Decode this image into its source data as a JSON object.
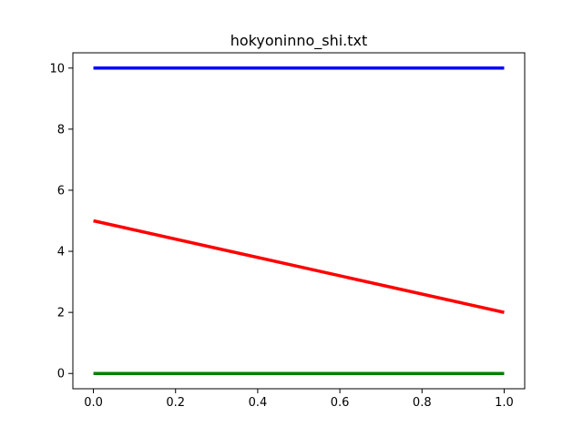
{
  "chart_data": {
    "type": "line",
    "title": "hokyoninno_shi.txt",
    "xlabel": "",
    "ylabel": "",
    "xlim": [
      -0.05,
      1.05
    ],
    "ylim": [
      -0.5,
      10.5
    ],
    "x_ticks": [
      0.0,
      0.2,
      0.4,
      0.6,
      0.8,
      1.0
    ],
    "x_tick_labels": [
      "0.0",
      "0.2",
      "0.4",
      "0.6",
      "0.8",
      "1.0"
    ],
    "y_ticks": [
      0,
      2,
      4,
      6,
      8,
      10
    ],
    "y_tick_labels": [
      "0",
      "2",
      "4",
      "6",
      "8",
      "10"
    ],
    "grid": false,
    "legend": "none",
    "series": [
      {
        "color": "#0000ff",
        "x": [
          0.0,
          1.0
        ],
        "y": [
          10,
          10
        ]
      },
      {
        "color": "#ff0000",
        "x": [
          0.0,
          1.0
        ],
        "y": [
          5,
          2
        ]
      },
      {
        "color": "#008000",
        "x": [
          0.0,
          1.0
        ],
        "y": [
          0,
          0
        ]
      }
    ]
  }
}
